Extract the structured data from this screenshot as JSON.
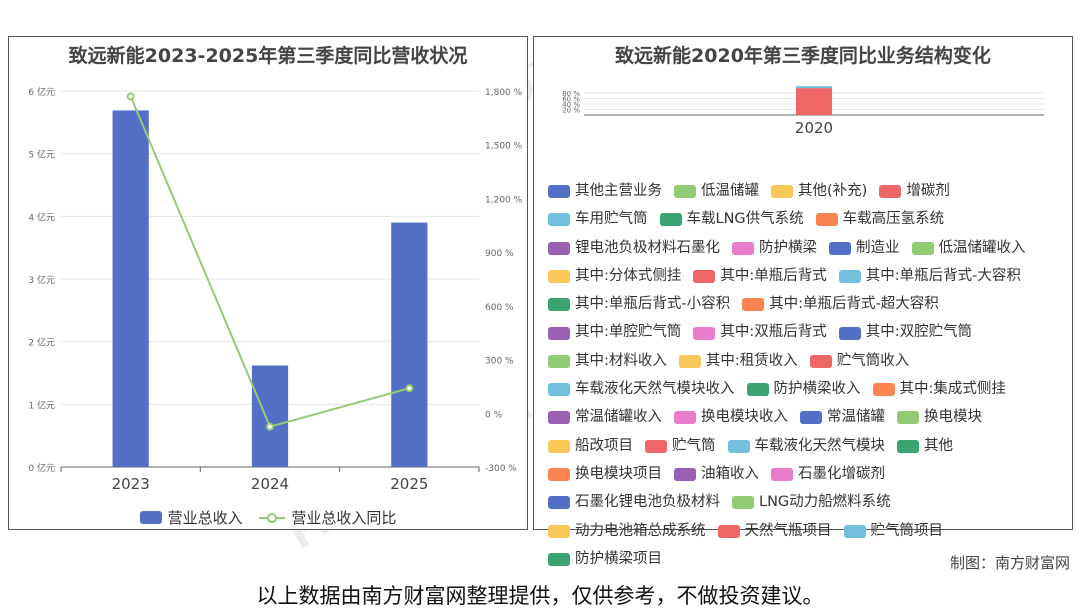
{
  "credit": "制图：南方财富网",
  "disclaimer": "以上数据由南方财富网整理提供，仅供参考，不做投资建议。",
  "colors": {
    "bar": "#5470c6",
    "line": "#91cc75",
    "palette": [
      "#5470c6",
      "#91cc75",
      "#fac858",
      "#ee6666",
      "#73c0de",
      "#3ba272",
      "#fc8452",
      "#9a60b4",
      "#ea7ccc"
    ]
  },
  "chart_data": [
    {
      "type": "bar",
      "title": "致远新能2023-2025年第三季度同比营收状况",
      "categories": [
        "2023",
        "2024",
        "2025"
      ],
      "y_ticks": [
        "6 亿元",
        "5 亿元",
        "4 亿元",
        "3 亿元",
        "2 亿元",
        "1 亿元",
        "0 亿元"
      ],
      "y2_ticks": [
        "1,800 %",
        "1,500 %",
        "1,200 %",
        "900 %",
        "600 %",
        "300 %",
        "0 %",
        "-300 %"
      ],
      "ylim": [
        0,
        6
      ],
      "y2lim": [
        -300,
        1800
      ],
      "series": [
        {
          "name": "营业总收入",
          "type": "bar",
          "values": [
            5.69,
            1.62,
            3.9
          ]
        },
        {
          "name": "营业总收入同比",
          "type": "line",
          "axis": "right",
          "values": [
            1770,
            -75,
            140
          ]
        }
      ],
      "legend": "bottom",
      "grid": true
    },
    {
      "type": "bar",
      "title": "致远新能2020年第三季度同比业务结构变化",
      "categories": [
        "2020"
      ],
      "y_ticks": [
        "80 %",
        "60 %",
        "40 %",
        "20 %"
      ],
      "stacked": true,
      "series_values": [
        {
          "name": "增碳剂",
          "value": 96
        }
      ],
      "legend": "bottom",
      "legend_items": [
        {
          "name": "其他主营业务",
          "color": "#5470c6"
        },
        {
          "name": "低温储罐",
          "color": "#91cc75"
        },
        {
          "name": "其他(补充)",
          "color": "#fac858"
        },
        {
          "name": "增碳剂",
          "color": "#ee6666"
        },
        {
          "name": "车用贮气筒",
          "color": "#73c0de"
        },
        {
          "name": "车载LNG供气系统",
          "color": "#3ba272"
        },
        {
          "name": "车载高压氢系统",
          "color": "#fc8452"
        },
        {
          "name": "锂电池负极材料石墨化",
          "color": "#9a60b4"
        },
        {
          "name": "防护横梁",
          "color": "#ea7ccc"
        },
        {
          "name": "制造业",
          "color": "#5470c6"
        },
        {
          "name": "低温储罐收入",
          "color": "#91cc75"
        },
        {
          "name": "其中:分体式侧挂",
          "color": "#fac858"
        },
        {
          "name": "其中:单瓶后背式",
          "color": "#ee6666"
        },
        {
          "name": "其中:单瓶后背式-大容积",
          "color": "#73c0de"
        },
        {
          "name": "其中:单瓶后背式-小容积",
          "color": "#3ba272"
        },
        {
          "name": "其中:单瓶后背式-超大容积",
          "color": "#fc8452"
        },
        {
          "name": "其中:单腔贮气筒",
          "color": "#9a60b4"
        },
        {
          "name": "其中:双瓶后背式",
          "color": "#ea7ccc"
        },
        {
          "name": "其中:双腔贮气筒",
          "color": "#5470c6"
        },
        {
          "name": "其中:材料收入",
          "color": "#91cc75"
        },
        {
          "name": "其中:租赁收入",
          "color": "#fac858"
        },
        {
          "name": "贮气筒收入",
          "color": "#ee6666"
        },
        {
          "name": "车载液化天然气模块收入",
          "color": "#73c0de"
        },
        {
          "name": "防护横梁收入",
          "color": "#3ba272"
        },
        {
          "name": "其中:集成式侧挂",
          "color": "#fc8452"
        },
        {
          "name": "常温储罐收入",
          "color": "#9a60b4"
        },
        {
          "name": "换电模块收入",
          "color": "#ea7ccc"
        },
        {
          "name": "常温储罐",
          "color": "#5470c6"
        },
        {
          "name": "换电模块",
          "color": "#91cc75"
        },
        {
          "name": "船改项目",
          "color": "#fac858"
        },
        {
          "name": "贮气筒",
          "color": "#ee6666"
        },
        {
          "name": "车载液化天然气模块",
          "color": "#73c0de"
        },
        {
          "name": "其他",
          "color": "#3ba272"
        },
        {
          "name": "换电模块项目",
          "color": "#fc8452"
        },
        {
          "name": "油箱收入",
          "color": "#9a60b4"
        },
        {
          "name": "石墨化增碳剂",
          "color": "#ea7ccc"
        },
        {
          "name": "石墨化锂电池负极材料",
          "color": "#5470c6"
        },
        {
          "name": "LNG动力船燃料系统",
          "color": "#91cc75"
        },
        {
          "name": "动力电池箱总成系统",
          "color": "#fac858"
        },
        {
          "name": "天然气瓶项目",
          "color": "#ee6666"
        },
        {
          "name": "贮气筒项目",
          "color": "#73c0de"
        },
        {
          "name": "防护横梁项目",
          "color": "#3ba272"
        }
      ]
    }
  ]
}
